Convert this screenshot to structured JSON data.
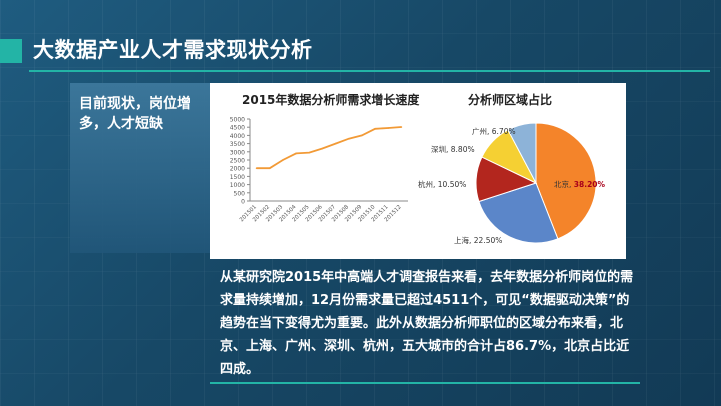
{
  "slide": {
    "title": "大数据产业人才需求现状分析",
    "left_card_text": "目前现状，岗位增多，人才短缺",
    "paragraph": "从某研究院2015年中高端人才调查报告来看，去年数据分析师岗位的需求量持续增加，12月份需求量已超过4511个，可见“数据驱动决策”的趋势在当下变得尤为重要。此外从数据分析师职位的区域分布来看，北京、上海、广州、深圳、杭州，五大城市的合计占86.7%，北京占比近四成。",
    "accent_color": "#23b4a6"
  },
  "chart_data": [
    {
      "type": "line",
      "title": "2015年数据分析师需求增长速度",
      "categories": [
        "201501",
        "201502",
        "201503",
        "201504",
        "201505",
        "201506",
        "201507",
        "201508",
        "201509",
        "201510",
        "201511",
        "201512"
      ],
      "values": [
        2000,
        2000,
        2500,
        2900,
        2950,
        3200,
        3500,
        3800,
        4000,
        4400,
        4450,
        4511
      ],
      "ylim": [
        0,
        5000
      ],
      "yticks": [
        "0",
        "500",
        "1000",
        "1500",
        "2000",
        "2500",
        "3000",
        "3500",
        "4000",
        "4500",
        "5000"
      ],
      "line_color": "#f29a36",
      "grid": false
    },
    {
      "type": "pie",
      "title": "分析师区域占比",
      "slices": [
        {
          "label": "北京",
          "value": 38.2,
          "text": "38.20%",
          "color": "#f4842a"
        },
        {
          "label": "上海",
          "value": 22.5,
          "text": "22.50%",
          "color": "#5b86c9"
        },
        {
          "label": "杭州",
          "value": 10.5,
          "text": "10.50%",
          "color": "#b3261e"
        },
        {
          "label": "深圳",
          "value": 8.8,
          "text": "8.80%",
          "color": "#f5d033"
        },
        {
          "label": "广州",
          "value": 6.7,
          "text": "6.70%",
          "color": "#8db3d8"
        }
      ]
    }
  ]
}
